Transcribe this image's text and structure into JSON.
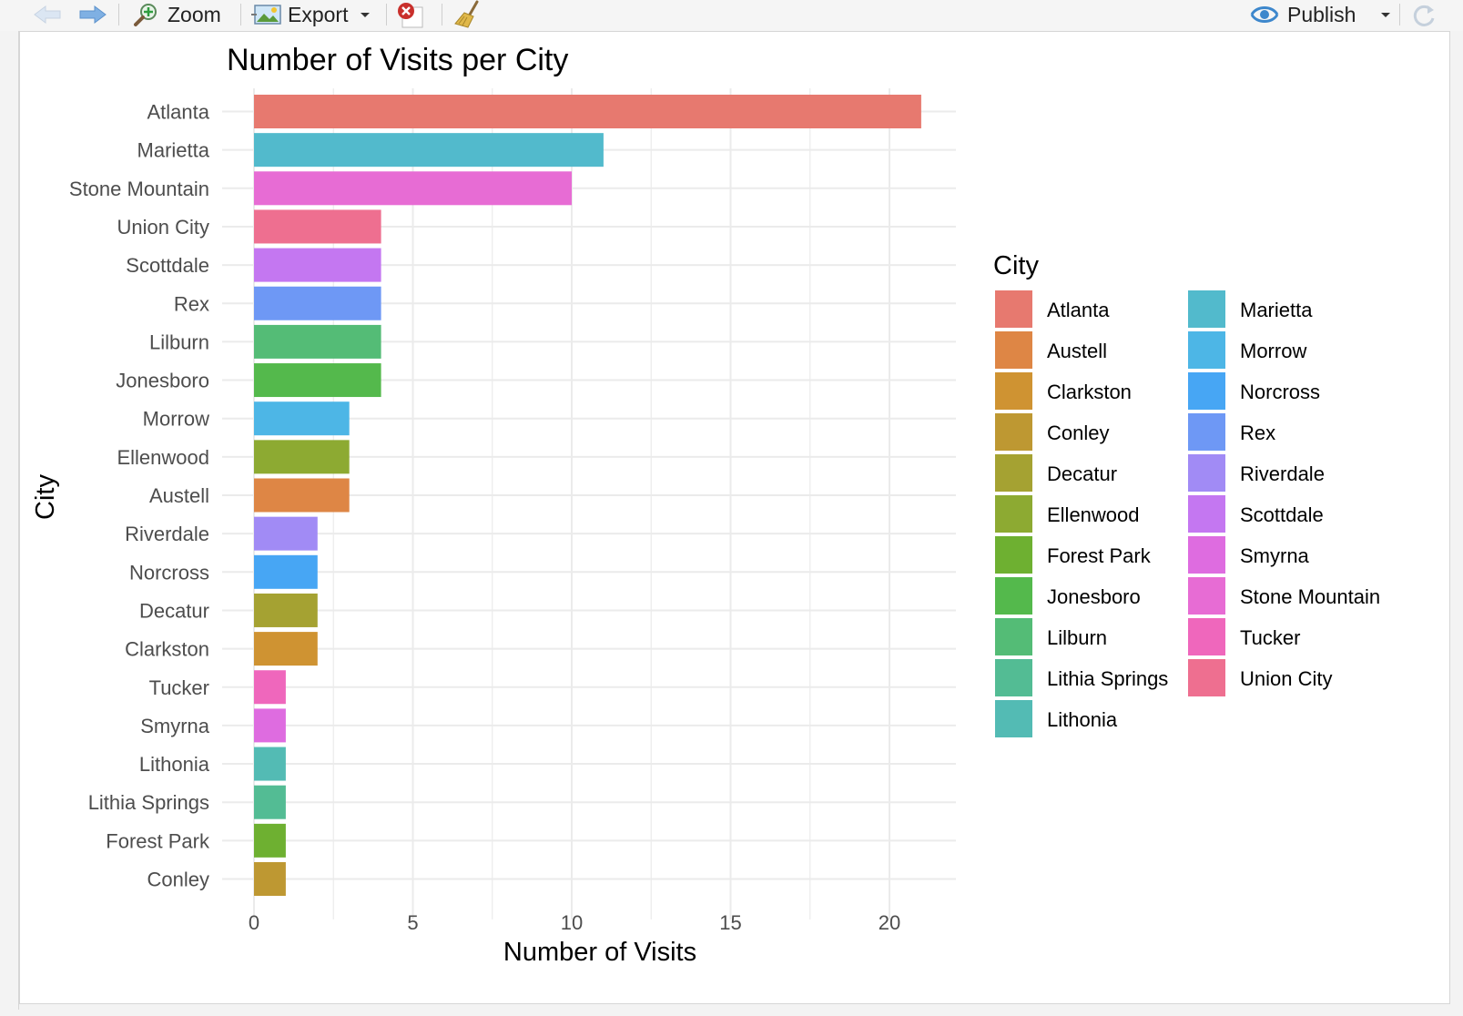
{
  "toolbar": {
    "zoom_label": "Zoom",
    "export_label": "Export",
    "publish_label": "Publish"
  },
  "colors": {
    "grid": "#ebebeb",
    "text_dark": "#000000",
    "tick_text": "#4d4d4d"
  },
  "chart_data": {
    "type": "bar",
    "orientation": "horizontal",
    "title": "Number of Visits per City",
    "xlabel": "Number of Visits",
    "ylabel": "City",
    "xlim": [
      0,
      22
    ],
    "xticks": [
      0,
      5,
      10,
      15,
      20
    ],
    "grid": true,
    "categories": [
      "Atlanta",
      "Marietta",
      "Stone Mountain",
      "Union City",
      "Scottdale",
      "Rex",
      "Lilburn",
      "Jonesboro",
      "Morrow",
      "Ellenwood",
      "Austell",
      "Riverdale",
      "Norcross",
      "Decatur",
      "Clarkston",
      "Tucker",
      "Smyrna",
      "Lithonia",
      "Lithia Springs",
      "Forest Park",
      "Conley"
    ],
    "values": [
      21,
      11,
      10,
      4,
      4,
      4,
      4,
      4,
      3,
      3,
      3,
      2,
      2,
      2,
      2,
      1,
      1,
      1,
      1,
      1,
      1
    ],
    "bar_colors": [
      "#E7796F",
      "#52BACC",
      "#E76CD4",
      "#EE6F90",
      "#C477F1",
      "#6E98F5",
      "#54BC76",
      "#54B94C",
      "#4DB6E6",
      "#8DAA32",
      "#DE8645",
      "#A18BF5",
      "#47A6F4",
      "#A5A232",
      "#CF9332",
      "#EF67BC",
      "#DE6CE0",
      "#53BBB4",
      "#53BC94",
      "#6EB031",
      "#BE9832"
    ],
    "legend": {
      "title": "City",
      "placement": "right",
      "entries": [
        {
          "name": "Atlanta",
          "color": "#E7796F"
        },
        {
          "name": "Austell",
          "color": "#DE8645"
        },
        {
          "name": "Clarkston",
          "color": "#CF9332"
        },
        {
          "name": "Conley",
          "color": "#BE9832"
        },
        {
          "name": "Decatur",
          "color": "#A5A232"
        },
        {
          "name": "Ellenwood",
          "color": "#8DAA32"
        },
        {
          "name": "Forest Park",
          "color": "#6EB031"
        },
        {
          "name": "Jonesboro",
          "color": "#54B94C"
        },
        {
          "name": "Lilburn",
          "color": "#54BC76"
        },
        {
          "name": "Lithia Springs",
          "color": "#53BC94"
        },
        {
          "name": "Lithonia",
          "color": "#53BBB4"
        },
        {
          "name": "Marietta",
          "color": "#52BACC"
        },
        {
          "name": "Morrow",
          "color": "#4DB6E6"
        },
        {
          "name": "Norcross",
          "color": "#47A6F4"
        },
        {
          "name": "Rex",
          "color": "#6E98F5"
        },
        {
          "name": "Riverdale",
          "color": "#A18BF5"
        },
        {
          "name": "Scottdale",
          "color": "#C477F1"
        },
        {
          "name": "Smyrna",
          "color": "#DE6CE0"
        },
        {
          "name": "Stone Mountain",
          "color": "#E76CD4"
        },
        {
          "name": "Tucker",
          "color": "#EF67BC"
        },
        {
          "name": "Union City",
          "color": "#EE6F90"
        }
      ]
    }
  }
}
